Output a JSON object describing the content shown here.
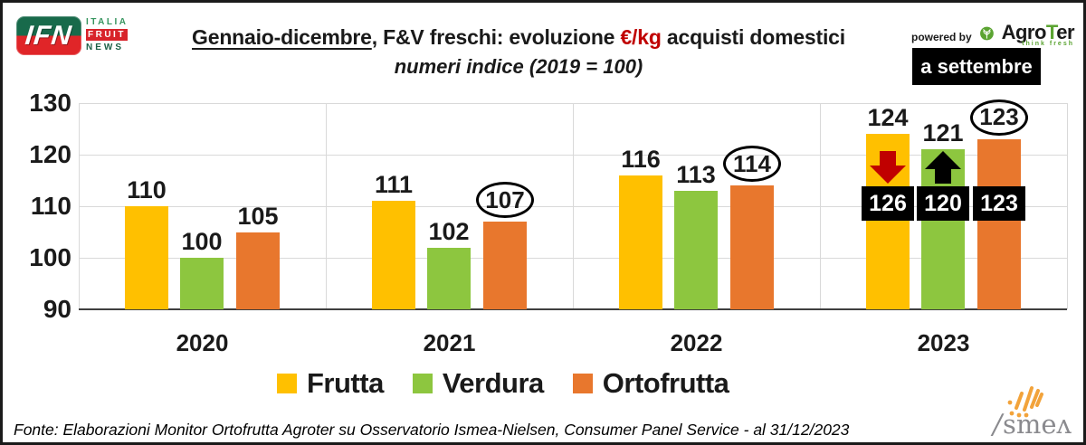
{
  "header": {
    "ifn_logo": {
      "monogram": "IFN",
      "line1": "ITALIA",
      "line2": "FRUIT",
      "line3": "NEWS"
    },
    "title_underlined": "Gennaio-dicembre",
    "title_mid": ", F&V freschi: evoluzione ",
    "title_accent": "€/kg",
    "title_end": " acquisti domestici",
    "subtitle": "numeri indice (2019 = 100)",
    "powered_by": "powered by",
    "agroter_pre": "Agro",
    "agroter_t": "T",
    "agroter_post": "er",
    "agroter_tagline": "think fresh",
    "period_badge": "a settembre"
  },
  "chart_data": {
    "type": "bar",
    "title": "Gennaio-dicembre, F&V freschi: evoluzione €/kg acquisti domestici",
    "subtitle": "numeri indice (2019 = 100)",
    "categories": [
      "2020",
      "2021",
      "2022",
      "2023"
    ],
    "series": [
      {
        "name": "Frutta",
        "color": "#FFC000",
        "values": [
          110,
          111,
          116,
          124
        ],
        "circled": [
          false,
          false,
          false,
          false
        ],
        "badges": [
          null,
          null,
          null,
          "126"
        ],
        "arrows": [
          null,
          null,
          null,
          "down"
        ]
      },
      {
        "name": "Verdura",
        "color": "#8DC63F",
        "values": [
          100,
          102,
          113,
          121
        ],
        "circled": [
          false,
          false,
          false,
          false
        ],
        "badges": [
          null,
          null,
          null,
          "120"
        ],
        "arrows": [
          null,
          null,
          null,
          "up"
        ]
      },
      {
        "name": "Ortofrutta",
        "color": "#E8772D",
        "values": [
          105,
          107,
          114,
          123
        ],
        "circled": [
          false,
          true,
          true,
          true
        ],
        "badges": [
          null,
          null,
          null,
          "123"
        ],
        "arrows": [
          null,
          null,
          null,
          null
        ]
      }
    ],
    "ylim": [
      90,
      130
    ],
    "yticks": [
      90,
      100,
      110,
      120,
      130
    ],
    "grid": true,
    "legend_position": "bottom",
    "annotation_colors": {
      "arrow_down": "#C00000",
      "arrow_up": "#000000",
      "badge_bg": "#000000",
      "badge_text": "#FFFFFF"
    }
  },
  "footer": {
    "source": "Fonte: Elaborazioni Monitor Ortofrutta Agroter su Osservatorio Ismea-Nielsen, Consumer Panel Service - al 31/12/2023"
  },
  "ismea": {
    "accent": "/",
    "wordmark": "smeʌ"
  }
}
